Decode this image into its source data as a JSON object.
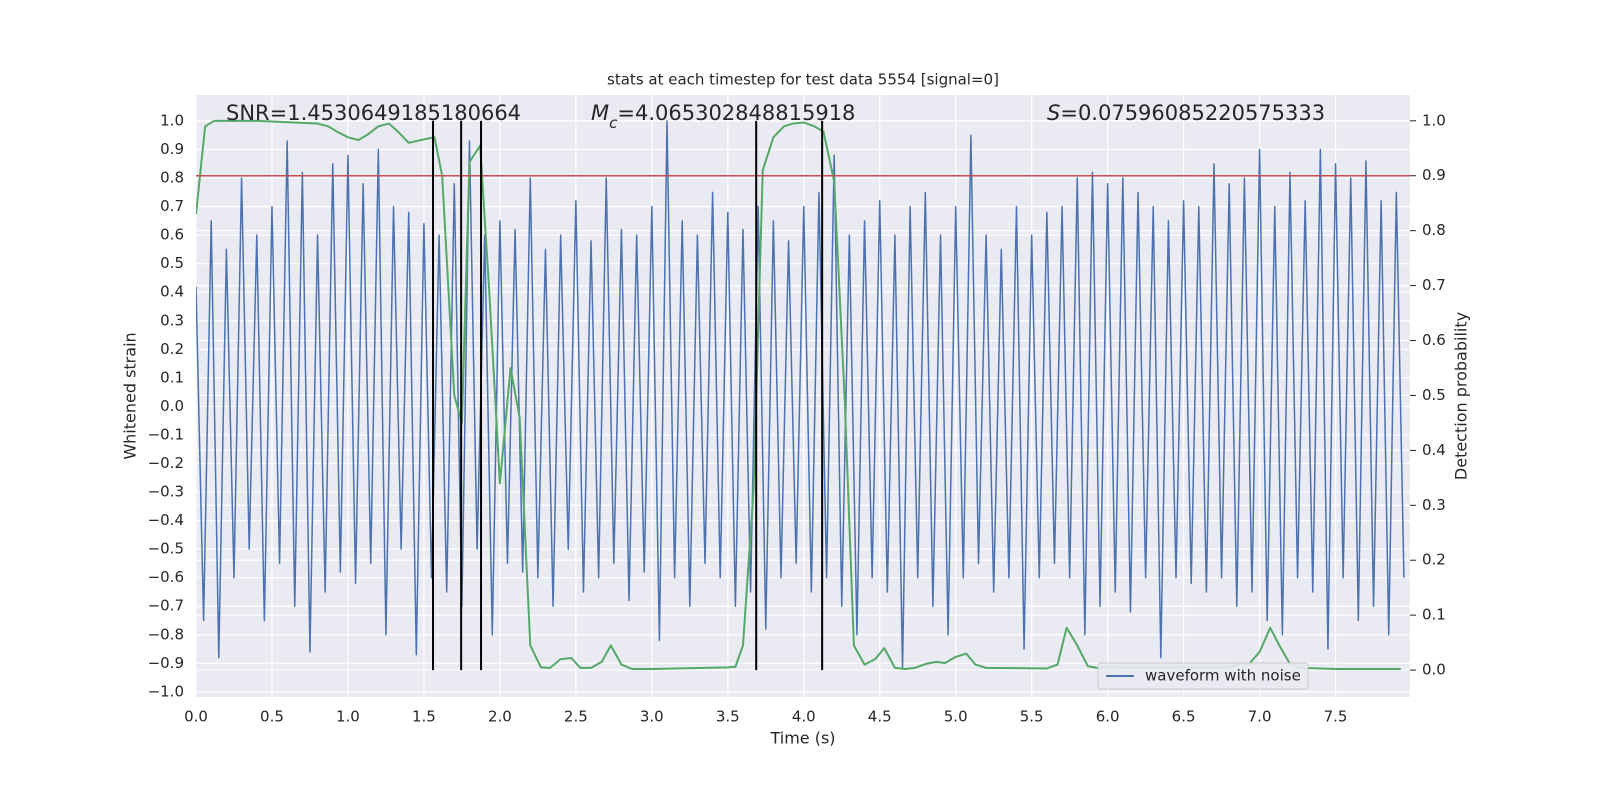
{
  "chart_data": {
    "type": "line",
    "title": "stats at each timestep for test data 5554 [signal=0]",
    "xlabel": "Time (s)",
    "ylabel": "Whitened strain",
    "y2label": "Detection probability",
    "annotations": [
      {
        "text": "SNR=1.4530649185180664"
      },
      {
        "symbol": "M",
        "subscript": "c",
        "text": "=4.065302848815918"
      },
      {
        "symbol": "S",
        "text": "=0.07596085220575333"
      }
    ],
    "xlim": [
      0,
      7.99
    ],
    "ylim": [
      -1.018,
      1.091
    ],
    "y2lim": [
      -0.049,
      1.047
    ],
    "xticks": [
      {
        "value": 0,
        "label": "0.0"
      },
      {
        "value": 0.5,
        "label": "0.5"
      },
      {
        "value": 1,
        "label": "1.0"
      },
      {
        "value": 1.5,
        "label": "1.5"
      },
      {
        "value": 2,
        "label": "2.0"
      },
      {
        "value": 2.5,
        "label": "2.5"
      },
      {
        "value": 3,
        "label": "3.0"
      },
      {
        "value": 3.5,
        "label": "3.5"
      },
      {
        "value": 4,
        "label": "4.0"
      },
      {
        "value": 4.5,
        "label": "4.5"
      },
      {
        "value": 5,
        "label": "5.0"
      },
      {
        "value": 5.5,
        "label": "5.5"
      },
      {
        "value": 6,
        "label": "6.0"
      },
      {
        "value": 6.5,
        "label": "6.5"
      },
      {
        "value": 7,
        "label": "7.0"
      },
      {
        "value": 7.5,
        "label": "7.5"
      }
    ],
    "yticks": [
      {
        "value": -1,
        "label": "−1.0"
      },
      {
        "value": -0.9,
        "label": "−0.9"
      },
      {
        "value": -0.8,
        "label": "−0.8"
      },
      {
        "value": -0.7,
        "label": "−0.7"
      },
      {
        "value": -0.6,
        "label": "−0.6"
      },
      {
        "value": -0.5,
        "label": "−0.5"
      },
      {
        "value": -0.4,
        "label": "−0.4"
      },
      {
        "value": -0.3,
        "label": "−0.3"
      },
      {
        "value": -0.2,
        "label": "−0.2"
      },
      {
        "value": -0.1,
        "label": "−0.1"
      },
      {
        "value": 0,
        "label": "0.0"
      },
      {
        "value": 0.1,
        "label": "0.1"
      },
      {
        "value": 0.2,
        "label": "0.2"
      },
      {
        "value": 0.3,
        "label": "0.3"
      },
      {
        "value": 0.4,
        "label": "0.4"
      },
      {
        "value": 0.5,
        "label": "0.5"
      },
      {
        "value": 0.6,
        "label": "0.6"
      },
      {
        "value": 0.7,
        "label": "0.7"
      },
      {
        "value": 0.8,
        "label": "0.8"
      },
      {
        "value": 0.9,
        "label": "0.9"
      },
      {
        "value": 1,
        "label": "1.0"
      }
    ],
    "y2ticks": [
      {
        "value": 0,
        "label": "0.0"
      },
      {
        "value": 0.1,
        "label": "0.1"
      },
      {
        "value": 0.2,
        "label": "0.2"
      },
      {
        "value": 0.3,
        "label": "0.3"
      },
      {
        "value": 0.4,
        "label": "0.4"
      },
      {
        "value": 0.5,
        "label": "0.5"
      },
      {
        "value": 0.6,
        "label": "0.6"
      },
      {
        "value": 0.7,
        "label": "0.7"
      },
      {
        "value": 0.8,
        "label": "0.8"
      },
      {
        "value": 0.9,
        "label": "0.9"
      },
      {
        "value": 1,
        "label": "1.0"
      }
    ],
    "grid": true,
    "legend": "lower right",
    "threshold": {
      "value": 0.9,
      "axis": "y2",
      "color": "#c44e52"
    },
    "vlines": {
      "x": [
        1.56,
        1.745,
        1.876,
        3.687,
        4.121
      ],
      "color": "#000000",
      "span": [
        0,
        1
      ]
    },
    "series": [
      {
        "name": "waveform with noise",
        "color": "#4c72b0",
        "x": [
          0,
          0.05,
          0.1,
          0.15,
          0.2,
          0.25,
          0.3,
          0.35,
          0.4,
          0.45,
          0.5,
          0.55,
          0.6,
          0.65,
          0.7,
          0.75,
          0.8,
          0.85,
          0.9,
          0.95,
          1,
          1.05,
          1.1,
          1.15,
          1.2,
          1.25,
          1.3,
          1.35,
          1.4,
          1.45,
          1.5,
          1.55,
          1.6,
          1.65,
          1.7,
          1.75,
          1.8,
          1.85,
          1.9,
          1.95,
          2,
          2.05,
          2.1,
          2.15,
          2.2,
          2.25,
          2.3,
          2.35,
          2.4,
          2.45,
          2.5,
          2.55,
          2.6,
          2.65,
          2.7,
          2.75,
          2.8,
          2.85,
          2.9,
          2.95,
          3,
          3.05,
          3.1,
          3.15,
          3.2,
          3.25,
          3.3,
          3.35,
          3.4,
          3.45,
          3.5,
          3.55,
          3.6,
          3.65,
          3.7,
          3.75,
          3.8,
          3.85,
          3.9,
          3.95,
          4,
          4.05,
          4.1,
          4.15,
          4.2,
          4.25,
          4.3,
          4.35,
          4.4,
          4.45,
          4.5,
          4.55,
          4.6,
          4.65,
          4.7,
          4.75,
          4.8,
          4.85,
          4.9,
          4.95,
          5,
          5.05,
          5.1,
          5.15,
          5.2,
          5.25,
          5.3,
          5.35,
          5.4,
          5.45,
          5.5,
          5.55,
          5.6,
          5.65,
          5.7,
          5.75,
          5.8,
          5.85,
          5.9,
          5.95,
          6,
          6.05,
          6.1,
          6.15,
          6.2,
          6.25,
          6.3,
          6.35,
          6.4,
          6.45,
          6.5,
          6.55,
          6.6,
          6.65,
          6.7,
          6.75,
          6.8,
          6.85,
          6.9,
          6.95,
          7,
          7.05,
          7.1,
          7.15,
          7.2,
          7.25,
          7.3,
          7.35,
          7.4,
          7.45,
          7.5,
          7.55,
          7.6,
          7.65,
          7.7,
          7.75,
          7.8,
          7.85,
          7.9,
          7.95
        ],
        "values": [
          0.42,
          -0.75,
          0.65,
          -0.88,
          0.55,
          -0.6,
          0.8,
          -0.5,
          0.6,
          -0.75,
          0.7,
          -0.55,
          0.93,
          -0.7,
          0.82,
          -0.86,
          0.6,
          -0.65,
          0.85,
          -0.58,
          0.88,
          -0.62,
          0.78,
          -0.55,
          0.9,
          -0.8,
          0.7,
          -0.5,
          0.68,
          -0.87,
          0.64,
          -0.6,
          0.6,
          -0.65,
          0.78,
          -0.7,
          0.93,
          -0.5,
          0.6,
          -0.8,
          0.65,
          -0.55,
          0.62,
          -0.58,
          0.8,
          -0.6,
          0.55,
          -0.7,
          0.6,
          -0.5,
          0.72,
          -0.65,
          0.58,
          -0.6,
          0.8,
          -0.55,
          0.62,
          -0.68,
          0.6,
          -0.58,
          0.7,
          -0.82,
          1.0,
          -0.6,
          0.65,
          -0.7,
          0.6,
          -0.55,
          0.75,
          -0.6,
          0.68,
          -0.7,
          0.62,
          -0.65,
          0.7,
          -0.78,
          0.65,
          -0.6,
          0.58,
          -0.55,
          0.7,
          -0.65,
          0.75,
          -0.6,
          0.88,
          -0.7,
          0.6,
          -0.8,
          0.65,
          -0.6,
          0.72,
          -0.65,
          0.6,
          -0.92,
          0.7,
          -0.6,
          0.75,
          -0.7,
          0.6,
          -0.8,
          0.7,
          -0.6,
          0.95,
          -0.55,
          0.6,
          -0.65,
          0.55,
          -0.6,
          0.7,
          -0.85,
          0.6,
          -0.6,
          0.68,
          -0.55,
          0.7,
          -0.6,
          0.8,
          -0.8,
          0.82,
          -0.7,
          0.78,
          -0.65,
          0.8,
          -0.72,
          0.75,
          -0.6,
          0.7,
          -0.88,
          0.65,
          -0.6,
          0.72,
          -0.62,
          0.7,
          -0.65,
          0.85,
          -0.6,
          0.78,
          -0.7,
          0.8,
          -0.65,
          0.9,
          -0.75,
          0.7,
          -0.8,
          0.82,
          -0.6,
          0.72,
          -0.65,
          0.9,
          -0.85,
          0.85,
          -0.6,
          0.8,
          -0.75,
          0.86,
          -0.7,
          0.72,
          -0.8,
          0.75,
          -0.6
        ]
      },
      {
        "color": "#55a868",
        "axis": "y2",
        "x": [
          0,
          0.06,
          0.12,
          0.4,
          0.8,
          0.87,
          0.93,
          1.0,
          1.07,
          1.13,
          1.2,
          1.27,
          1.33,
          1.4,
          1.48,
          1.57,
          1.62,
          1.7,
          1.75,
          1.8,
          1.87,
          1.93,
          2.0,
          2.07,
          2.13,
          2.2,
          2.27,
          2.33,
          2.4,
          2.47,
          2.53,
          2.6,
          2.67,
          2.73,
          2.8,
          2.87,
          3.0,
          3.5,
          3.55,
          3.6,
          3.67,
          3.73,
          3.8,
          3.87,
          3.93,
          4.0,
          4.07,
          4.13,
          4.2,
          4.27,
          4.33,
          4.4,
          4.47,
          4.53,
          4.6,
          4.67,
          4.73,
          4.8,
          4.87,
          4.93,
          5.0,
          5.07,
          5.13,
          5.2,
          5.6,
          5.67,
          5.73,
          5.8,
          5.87,
          5.93,
          6.0,
          6.07,
          6.5,
          6.8,
          6.87,
          6.93,
          7.0,
          7.07,
          7.13,
          7.2,
          7.27,
          7.5,
          7.93
        ],
        "values": [
          0.83,
          0.99,
          1.0,
          1.0,
          0.995,
          0.99,
          0.98,
          0.97,
          0.965,
          0.975,
          0.99,
          0.995,
          0.98,
          0.96,
          0.965,
          0.97,
          0.9,
          0.5,
          0.45,
          0.925,
          0.955,
          0.69,
          0.34,
          0.55,
          0.46,
          0.045,
          0.005,
          0.004,
          0.02,
          0.022,
          0.004,
          0.004,
          0.015,
          0.045,
          0.01,
          0.002,
          0.002,
          0.005,
          0.006,
          0.045,
          0.33,
          0.91,
          0.97,
          0.99,
          0.995,
          0.997,
          0.99,
          0.98,
          0.89,
          0.49,
          0.045,
          0.01,
          0.02,
          0.04,
          0.004,
          0.002,
          0.004,
          0.011,
          0.015,
          0.013,
          0.024,
          0.03,
          0.01,
          0.004,
          0.003,
          0.01,
          0.077,
          0.045,
          0.007,
          0.004,
          0.007,
          0.005,
          0.005,
          0.005,
          0.011,
          0.011,
          0.033,
          0.077,
          0.045,
          0.011,
          0.004,
          0.002,
          0.002
        ]
      }
    ]
  }
}
